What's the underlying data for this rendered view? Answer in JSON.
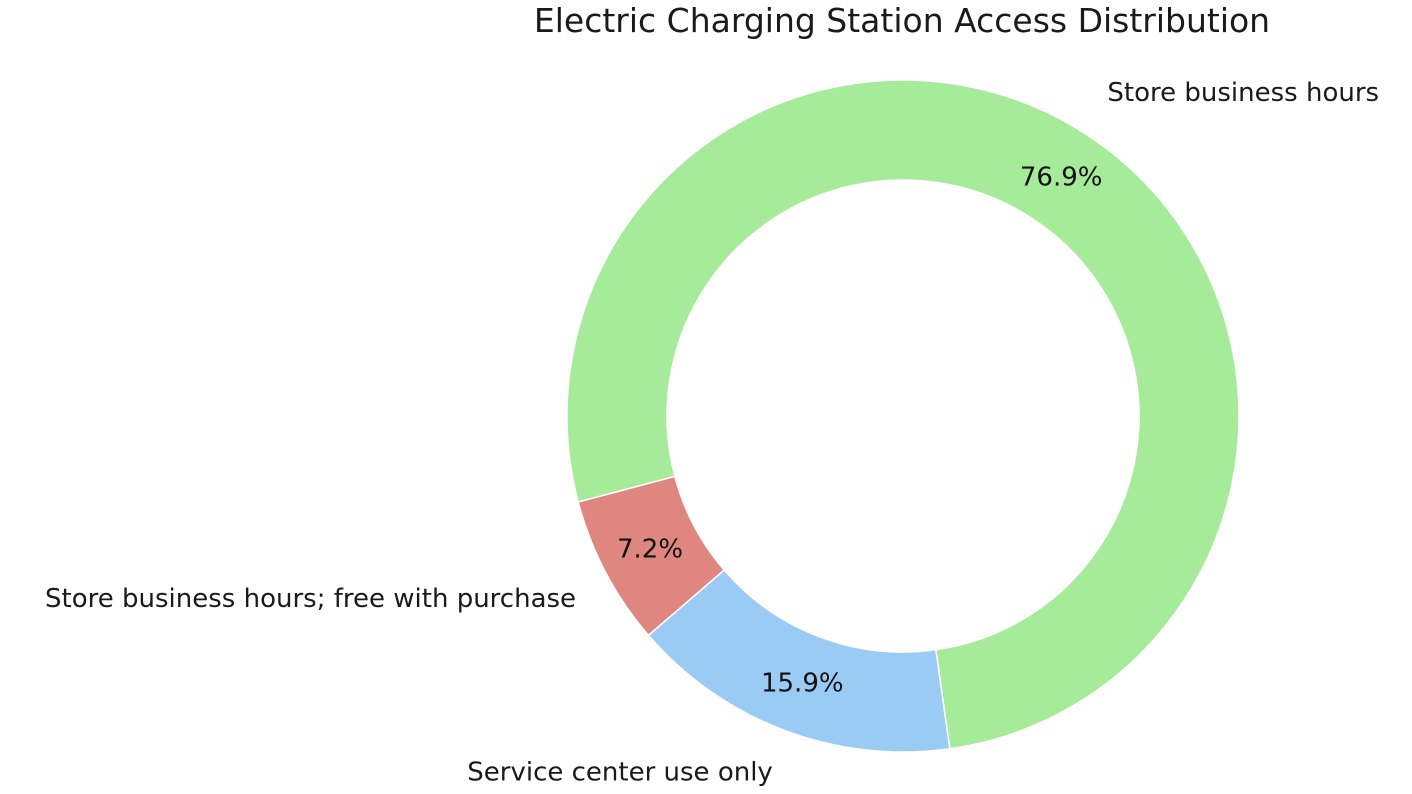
{
  "chart_data": {
    "type": "pie",
    "variant": "donut",
    "title": "Electric Charging Station Access Distribution",
    "categories": [
      "Store business hours",
      "Store business hours; free with purchase",
      "Service center use only"
    ],
    "values": [
      76.9,
      7.2,
      15.9
    ],
    "value_labels": [
      "76.9%",
      "7.2%",
      "15.9%"
    ],
    "colors": [
      "#a6eb99",
      "#e08680",
      "#99cbf5"
    ],
    "legend": "none"
  }
}
